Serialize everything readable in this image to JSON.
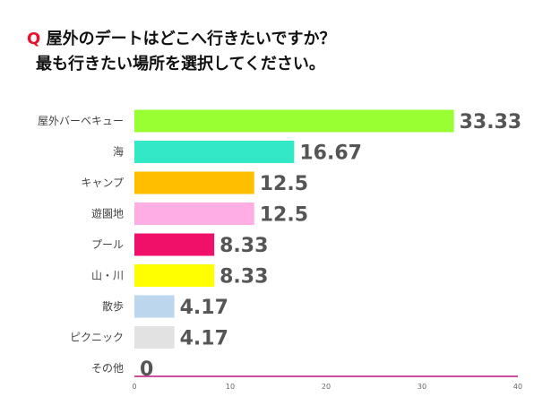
{
  "title": {
    "marker": "Q",
    "line1": "屋外のデートはどこへ行きたいですか？",
    "line2": "最も行きたい場所を選択してください。"
  },
  "chart_data": {
    "type": "bar",
    "orientation": "horizontal",
    "title": "Q 屋外のデートはどこへ行きたいですか？ 最も行きたい場所を選択してください。",
    "categories": [
      "屋外バーベキュー",
      "海",
      "キャンプ",
      "遊園地",
      "プール",
      "山・川",
      "散歩",
      "ピクニック",
      "その他"
    ],
    "values": [
      33.33,
      16.67,
      12.5,
      12.5,
      8.33,
      8.33,
      4.17,
      4.17,
      0
    ],
    "value_labels": [
      "33.33",
      "16.67",
      "12.5",
      "12.5",
      "8.33",
      "8.33",
      "4.17",
      "4.17",
      "0"
    ],
    "colors": [
      "#99ff33",
      "#33e8c4",
      "#ffbf00",
      "#ffaee3",
      "#f0106a",
      "#ffff00",
      "#bcd6ee",
      "#e2e2e2",
      "#e2e2e2"
    ],
    "xlim": [
      0,
      40
    ],
    "xticks": [
      "0",
      "10",
      "20",
      "30",
      "40"
    ],
    "grid": false,
    "axis_color": "#c0157c"
  }
}
